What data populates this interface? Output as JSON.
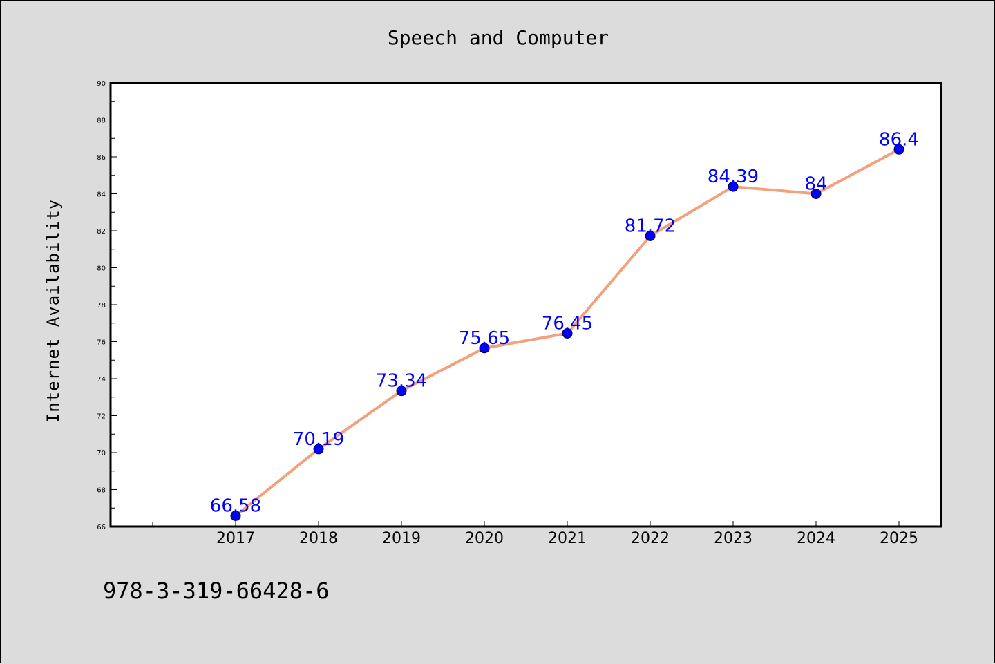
{
  "chart_data": {
    "type": "line",
    "title": "Speech and Computer",
    "xlabel": "",
    "ylabel": "Internet Availability",
    "categories": [
      "2017",
      "2018",
      "2019",
      "2020",
      "2021",
      "2022",
      "2023",
      "2024",
      "2025"
    ],
    "series": [
      {
        "values": [
          66.58,
          70.19,
          73.34,
          75.65,
          76.45,
          81.72,
          84.39,
          84,
          86.4
        ],
        "data_labels": [
          "66.58",
          "70.19",
          "73.34",
          "75.65",
          "76.45",
          "81.72",
          "84.39",
          "84",
          "86.4"
        ],
        "line_color": "#f4a07c",
        "marker_color": "#0000ff",
        "label_color": "#0000ff"
      }
    ],
    "ylim": [
      66,
      90
    ],
    "yticks": [
      "66",
      "68",
      "70",
      "72",
      "74",
      "76",
      "78",
      "80",
      "82",
      "84",
      "86",
      "88",
      "90"
    ],
    "grid": false,
    "legend": "none"
  },
  "footer": {
    "text": "978-3-319-66428-6"
  },
  "colors": {
    "background": "#dcdcdc",
    "plot_background": "#ffffff"
  }
}
